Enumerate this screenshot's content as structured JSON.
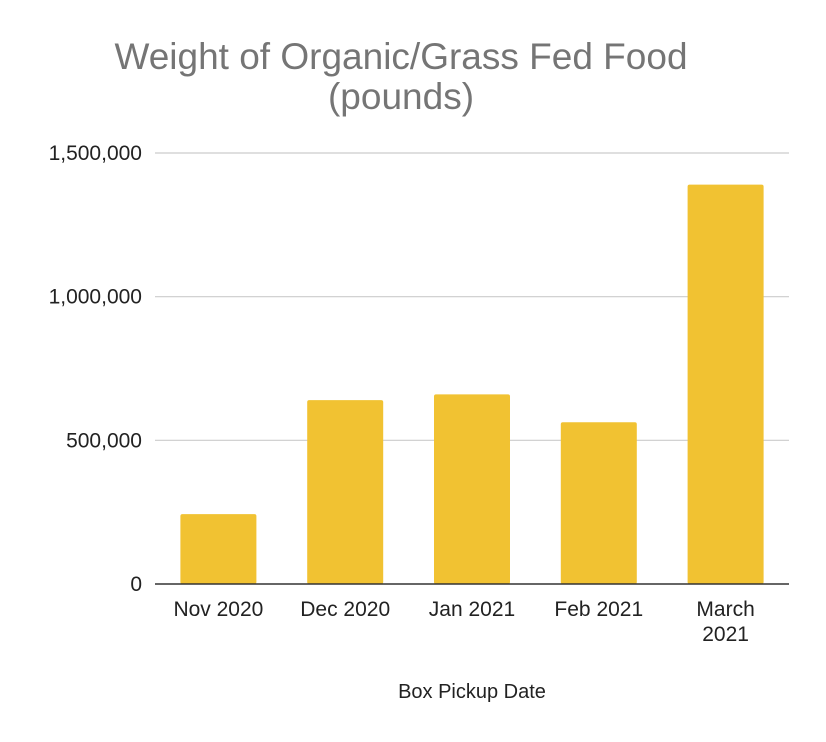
{
  "chart_data": {
    "type": "bar",
    "title_lines": [
      "Weight of Organic/Grass Fed Food",
      "(pounds)"
    ],
    "xlabel": "Box Pickup Date",
    "ylabel": "",
    "categories": [
      [
        "Nov 2020"
      ],
      [
        "Dec 2020"
      ],
      [
        "Jan 2021"
      ],
      [
        "Feb 2021"
      ],
      [
        "March",
        "2021"
      ]
    ],
    "values": [
      243000,
      640000,
      660000,
      563000,
      1390000
    ],
    "ylim": [
      0,
      1500000
    ],
    "yticks": [
      0,
      500000,
      1000000,
      1500000
    ],
    "ytick_labels": [
      "0",
      "500,000",
      "1,000,000",
      "1,500,000"
    ],
    "grid": true,
    "legend": "none",
    "bar_color": "#f1c232",
    "grid_color": "#cccccc",
    "axis_color": "#333333"
  }
}
